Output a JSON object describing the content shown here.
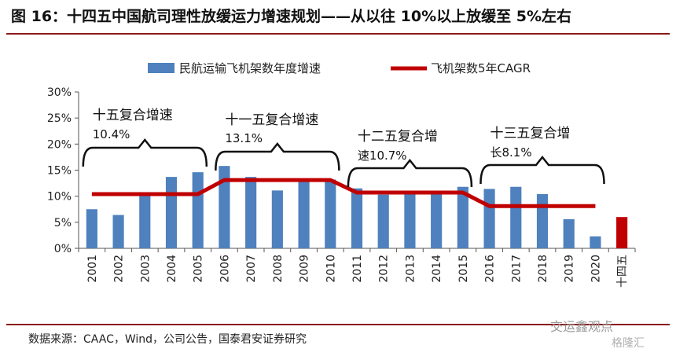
{
  "title": "图 16：十四五中国航司理性放缓运力增速规划——从以往 10%以上放缓至 5%左右",
  "source": "数据来源：CAAC，Wind，公司公告，国泰君安证券研究",
  "watermark": "交运鑫观点",
  "watermark2": "格隆汇",
  "colors": {
    "bar": "#4E81BD",
    "line": "#C00000",
    "highlight_bar": "#C00000",
    "rule": "#8B1A1A"
  },
  "chart_data": {
    "type": "bar",
    "categories": [
      "2001",
      "2002",
      "2003",
      "2004",
      "2005",
      "2006",
      "2007",
      "2008",
      "2009",
      "2010",
      "2011",
      "2012",
      "2013",
      "2014",
      "2015",
      "2016",
      "2017",
      "2018",
      "2019",
      "2020",
      "十四五"
    ],
    "ylim": [
      0,
      30
    ],
    "yticks": [
      "0%",
      "5%",
      "10%",
      "15%",
      "20%",
      "25%",
      "30%"
    ],
    "series": [
      {
        "name": "民航运输飞机架数年度增速",
        "kind": "bar",
        "values": [
          7.5,
          6.4,
          10.7,
          13.7,
          14.6,
          15.8,
          13.7,
          11.1,
          12.8,
          13.2,
          11.5,
          10.3,
          11.0,
          11.0,
          11.8,
          11.4,
          11.8,
          10.4,
          5.6,
          2.3,
          6.0
        ]
      },
      {
        "name": "飞机架数5年CAGR",
        "kind": "line",
        "segments": [
          {
            "from": "2001",
            "to": "2005",
            "value": 10.4
          },
          {
            "from": "2006",
            "to": "2010",
            "value": 13.1
          },
          {
            "from": "2011",
            "to": "2015",
            "value": 10.7
          },
          {
            "from": "2016",
            "to": "2020",
            "value": 8.1
          }
        ]
      }
    ],
    "annotations": [
      {
        "from": "2001",
        "to": "2005",
        "label1": "十五复合增速",
        "label2": "10.4%"
      },
      {
        "from": "2006",
        "to": "2010",
        "label1": "十一五复合增速",
        "label2": "13.1%"
      },
      {
        "from": "2011",
        "to": "2015",
        "label1": "十二五复合增",
        "label2": "速10.7%"
      },
      {
        "from": "2016",
        "to": "2020",
        "label1": "十三五复合增",
        "label2": "长8.1%"
      }
    ]
  }
}
